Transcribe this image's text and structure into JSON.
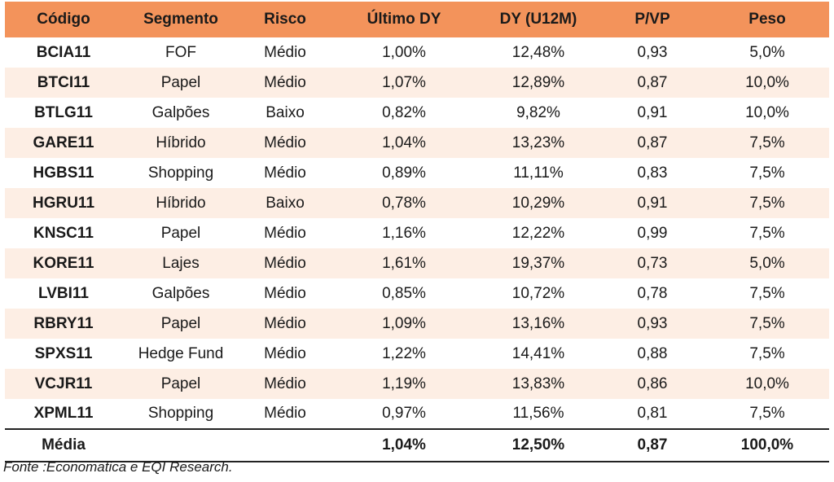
{
  "headers": [
    "Código",
    "Segmento",
    "Risco",
    "Último DY",
    "DY (U12M)",
    "P/VP",
    "Peso"
  ],
  "rows": [
    [
      "BCIA11",
      "FOF",
      "Médio",
      "1,00%",
      "12,48%",
      "0,93",
      "5,0%"
    ],
    [
      "BTCI11",
      "Papel",
      "Médio",
      "1,07%",
      "12,89%",
      "0,87",
      "10,0%"
    ],
    [
      "BTLG11",
      "Galpões",
      "Baixo",
      "0,82%",
      "9,82%",
      "0,91",
      "10,0%"
    ],
    [
      "GARE11",
      "Híbrido",
      "Médio",
      "1,04%",
      "13,23%",
      "0,87",
      "7,5%"
    ],
    [
      "HGBS11",
      "Shopping",
      "Médio",
      "0,89%",
      "11,11%",
      "0,83",
      "7,5%"
    ],
    [
      "HGRU11",
      "Híbrido",
      "Baixo",
      "0,78%",
      "10,29%",
      "0,91",
      "7,5%"
    ],
    [
      "KNSC11",
      "Papel",
      "Médio",
      "1,16%",
      "12,22%",
      "0,99",
      "7,5%"
    ],
    [
      "KORE11",
      "Lajes",
      "Médio",
      "1,61%",
      "19,37%",
      "0,73",
      "5,0%"
    ],
    [
      "LVBI11",
      "Galpões",
      "Médio",
      "0,85%",
      "10,72%",
      "0,78",
      "7,5%"
    ],
    [
      "RBRY11",
      "Papel",
      "Médio",
      "1,09%",
      "13,16%",
      "0,93",
      "7,5%"
    ],
    [
      "SPXS11",
      "Hedge Fund",
      "Médio",
      "1,22%",
      "14,41%",
      "0,88",
      "7,5%"
    ],
    [
      "VCJR11",
      "Papel",
      "Médio",
      "1,19%",
      "13,83%",
      "0,86",
      "10,0%"
    ],
    [
      "XPML11",
      "Shopping",
      "Médio",
      "0,97%",
      "11,56%",
      "0,81",
      "7,5%"
    ]
  ],
  "footer": [
    "Média",
    "",
    "",
    "1,04%",
    "12,50%",
    "0,87",
    "100,0%"
  ],
  "source": "Fonte :Economatica e EQI Research.",
  "colors": {
    "header_bg": "#f3935b",
    "stripe_bg": "#fdeee4"
  }
}
